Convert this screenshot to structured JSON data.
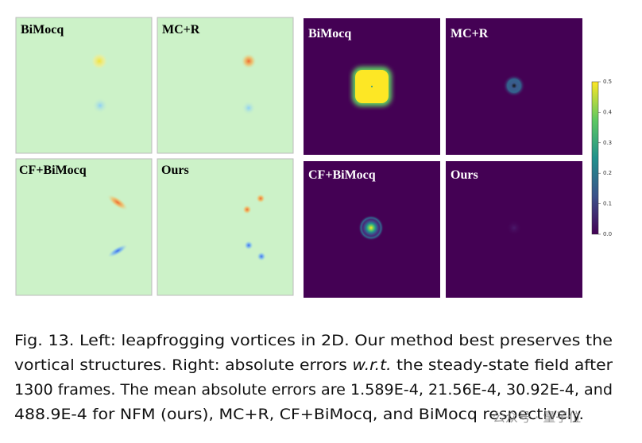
{
  "left_panels": [
    {
      "label": "BiMocq"
    },
    {
      "label": "MC+R"
    },
    {
      "label": "CF+BiMocq"
    },
    {
      "label": "Ours"
    }
  ],
  "right_panels": [
    {
      "label": "BiMocq"
    },
    {
      "label": "MC+R"
    },
    {
      "label": "CF+BiMocq"
    },
    {
      "label": "Ours"
    }
  ],
  "colorbar": {
    "range": [
      0,
      0.5
    ],
    "ticks": [
      {
        "value": 0,
        "label": "0.0"
      },
      {
        "value": 0.1,
        "label": "0.1"
      },
      {
        "value": 0.2,
        "label": "0.2"
      },
      {
        "value": 0.3,
        "label": "0.3"
      },
      {
        "value": 0.4,
        "label": "0.4"
      },
      {
        "value": 0.5,
        "label": "0.5"
      }
    ]
  },
  "caption": {
    "lines": [
      [
        "Fig. 13.  Left: leapfrogging vortices in 2D. Our method best preserves the"
      ],
      [
        "vortical structures. Right: absolute errors ",
        "w.r.t.",
        " the steady-state field after"
      ],
      [
        "1300 frames. The mean absolute errors are 1.589E-4, 21.56E-4, 30.92E-4, and"
      ],
      [
        "488.9E-4 for NFM (ours), MC+R, CF+BiMocq, and BiMocq respectively."
      ]
    ]
  },
  "watermark": "公众号 · 量子位"
}
